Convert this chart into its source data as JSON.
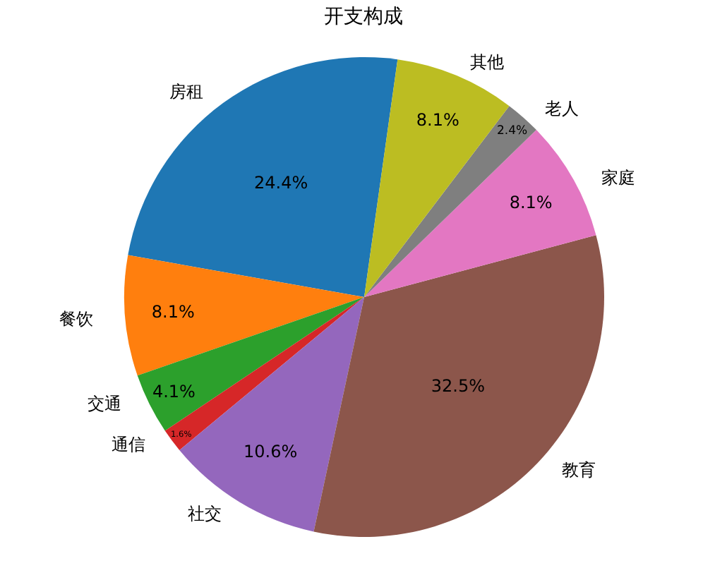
{
  "chart_data": {
    "type": "pie",
    "title": "开支构成",
    "categories": [
      "房租",
      "餐饮",
      "交通",
      "通信",
      "社交",
      "教育",
      "家庭",
      "老人",
      "其他"
    ],
    "values": [
      24.4,
      8.1,
      4.1,
      1.6,
      10.6,
      32.5,
      8.1,
      2.4,
      8.1
    ],
    "colors": [
      "#1f77b4",
      "#ff7f0e",
      "#2ca02c",
      "#d62728",
      "#9467bd",
      "#8c564b",
      "#e377c2",
      "#7f7f7f",
      "#bcbd22"
    ],
    "value_labels": [
      "24.4%",
      "8.1%",
      "4.1%",
      "1.6%",
      "10.6%",
      "32.5%",
      "8.1%",
      "2.4%",
      "8.1%"
    ],
    "legend": false
  }
}
